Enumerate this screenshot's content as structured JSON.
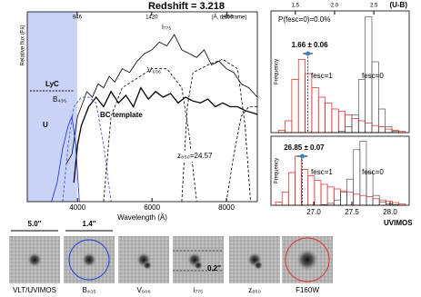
{
  "chart_data": [
    {
      "type": "line",
      "title": "Redshift = 3.218",
      "x_label": "Wavelength (Å)",
      "y_label": "Relative flux (Fλ)",
      "x2_label": "(Å, rest-frame)",
      "xlim": [
        2650,
        8830
      ],
      "xticks": [
        4000,
        6000,
        8000
      ],
      "x2lim": [
        628,
        2093
      ],
      "x2ticks": [
        946,
        1420,
        1900
      ],
      "ylim": [
        0,
        1
      ],
      "shaded": {
        "label": "LyC",
        "xlim": [
          2650,
          3990
        ],
        "color": "#c9d3f5"
      },
      "annotation": "BC template",
      "series": [
        {
          "color": "#000000",
          "x": [
            3700,
            3850,
            4000,
            4100,
            4250,
            4400,
            4550,
            4700,
            4850,
            5000,
            5200,
            5400,
            5600,
            5800,
            6000,
            6200,
            6400,
            6600,
            6800,
            7000,
            7200,
            7400,
            7600,
            7800,
            8000,
            8200,
            8400,
            8600,
            8830
          ],
          "values": [
            0.2,
            0.25,
            0.45,
            0.5,
            0.58,
            0.55,
            0.62,
            0.6,
            0.66,
            0.63,
            0.7,
            0.68,
            0.74,
            0.78,
            0.8,
            0.84,
            0.82,
            0.88,
            0.8,
            0.78,
            0.76,
            0.8,
            0.72,
            0.74,
            0.7,
            0.68,
            0.62,
            0.6,
            0.55
          ]
        },
        {
          "color": "#000000",
          "x": [
            3900,
            4000,
            4100,
            4300,
            4500,
            4700,
            4900,
            5100,
            5300,
            5500,
            5700,
            5900,
            6100,
            6300,
            6500,
            6700,
            6900,
            7100,
            7300,
            7500,
            7700,
            7900,
            8100,
            8300,
            8500,
            8830
          ],
          "values": [
            0.1,
            0.3,
            0.4,
            0.5,
            0.55,
            0.5,
            0.58,
            0.52,
            0.56,
            0.5,
            0.6,
            0.54,
            0.58,
            0.55,
            0.57,
            0.52,
            0.55,
            0.53,
            0.52,
            0.54,
            0.5,
            0.52,
            0.5,
            0.5,
            0.48,
            0.46
          ]
        },
        {
          "label": "U",
          "color": "#1a2bd6",
          "x": [
            3300,
            3450,
            3600,
            3750,
            3850,
            3950,
            4050
          ],
          "values": [
            0,
            0.1,
            0.28,
            0.4,
            0.45,
            0.3,
            0
          ]
        },
        {
          "label": "B₄₃₅",
          "color": "#3a4ad8",
          "dashed": true,
          "x": [
            3600,
            3750,
            3900,
            4100,
            4300,
            4500,
            4700,
            4900
          ],
          "values": [
            0,
            0.3,
            0.5,
            0.55,
            0.55,
            0.52,
            0.3,
            0
          ]
        },
        {
          "label": "V₆₀₆",
          "color": "#000000",
          "dashed": true,
          "x": [
            4700,
            4900,
            5200,
            5600,
            6000,
            6400,
            6800,
            7000,
            7200
          ],
          "values": [
            0,
            0.45,
            0.6,
            0.65,
            0.7,
            0.7,
            0.6,
            0.35,
            0
          ]
        },
        {
          "label": "i₇₇₅",
          "color": "#000000",
          "dashed": true,
          "x": [
            6800,
            6950,
            7100,
            7500,
            7900,
            8300,
            8500,
            8650
          ],
          "values": [
            0,
            0.5,
            0.68,
            0.72,
            0.75,
            0.7,
            0.4,
            0
          ]
        },
        {
          "label": "z₈₅₀=24.57",
          "color": "#000000",
          "dashed": true,
          "x": [
            8000,
            8200,
            8400,
            8600,
            8830
          ],
          "values": [
            0,
            0.25,
            0.45,
            0.5,
            0.5
          ]
        }
      ]
    },
    {
      "type": "histogram",
      "title": "P(fesc=0)=0.0%",
      "x2_label": "(U-B)",
      "y_label": "Frequency",
      "xlim": [
        1.19,
        2.95
      ],
      "xticks": [
        1.5,
        {
          "value": 2,
          "label": "2.0"
        },
        2.5
      ],
      "ylim": [
        0,
        1
      ],
      "bins": [
        1.2,
        1.285,
        1.37,
        1.455,
        1.54,
        1.625,
        1.71,
        1.795,
        1.88,
        1.965,
        2.05,
        2.135,
        2.22,
        2.305,
        2.39,
        2.475,
        2.56,
        2.645,
        2.73,
        2.815,
        2.9
      ],
      "series": [
        {
          "name": "fesc=1",
          "color": "#e02020",
          "values": [
            0,
            0.02,
            0.1,
            0.45,
            0.62,
            0.5,
            0.38,
            0.3,
            0.25,
            0.2,
            0.18,
            0.15,
            0.12,
            0.1,
            0.08,
            0.06,
            0.05,
            0.03,
            0.02,
            0.01
          ]
        },
        {
          "name": "fesc=0",
          "color": "#555555",
          "values": [
            0,
            0,
            0,
            0,
            0,
            0,
            0,
            0,
            0,
            0,
            0.01,
            0.05,
            0.15,
            0.45,
            0.98,
            0.6,
            0.2,
            0.05,
            0.01,
            0
          ]
        }
      ],
      "marker": {
        "value": 1.66,
        "error": 0.06,
        "label": "1.66 ± 0.06",
        "color": "#3a7fc0"
      }
    },
    {
      "type": "histogram",
      "x_label": "UVIMOS",
      "y_label": "Frequency",
      "xlim": [
        26.44,
        28.25
      ],
      "xticks": [
        {
          "value": 27,
          "label": "27.0"
        },
        27.5,
        {
          "value": 28,
          "label": "28.0"
        }
      ],
      "ylim": [
        0,
        1
      ],
      "bins": [
        26.5,
        26.585,
        26.67,
        26.755,
        26.84,
        26.925,
        27.01,
        27.095,
        27.18,
        27.265,
        27.35,
        27.435,
        27.52,
        27.605,
        27.69,
        27.775,
        27.86,
        27.945,
        28.03,
        28.115,
        28.2
      ],
      "series": [
        {
          "name": "fesc=1",
          "color": "#e02020",
          "values": [
            0.05,
            0.2,
            0.5,
            0.75,
            0.55,
            0.45,
            0.38,
            0.32,
            0.28,
            0.25,
            0.22,
            0.2,
            0.17,
            0.15,
            0.13,
            0.1,
            0.08,
            0.06,
            0.04,
            0.02
          ]
        },
        {
          "name": "fesc=0",
          "color": "#555555",
          "values": [
            0,
            0,
            0,
            0,
            0,
            0,
            0,
            0.01,
            0.03,
            0.08,
            0.2,
            0.4,
            0.85,
            0.98,
            0.5,
            0.15,
            0.05,
            0.02,
            0.01,
            0
          ]
        }
      ],
      "marker": {
        "value": 26.85,
        "error": 0.07,
        "label": "26.85 ± 0.07",
        "color": "#3a7fc0"
      }
    }
  ],
  "cutouts": {
    "scale_bars": [
      "5.0″",
      "1.4″"
    ],
    "annotation": "0.2″",
    "labels": [
      "VLT/UVIMOS",
      "B₄₃₅",
      "V₆₀₆",
      "i₇₇₅",
      "z₈₅₀",
      "F160W"
    ]
  }
}
